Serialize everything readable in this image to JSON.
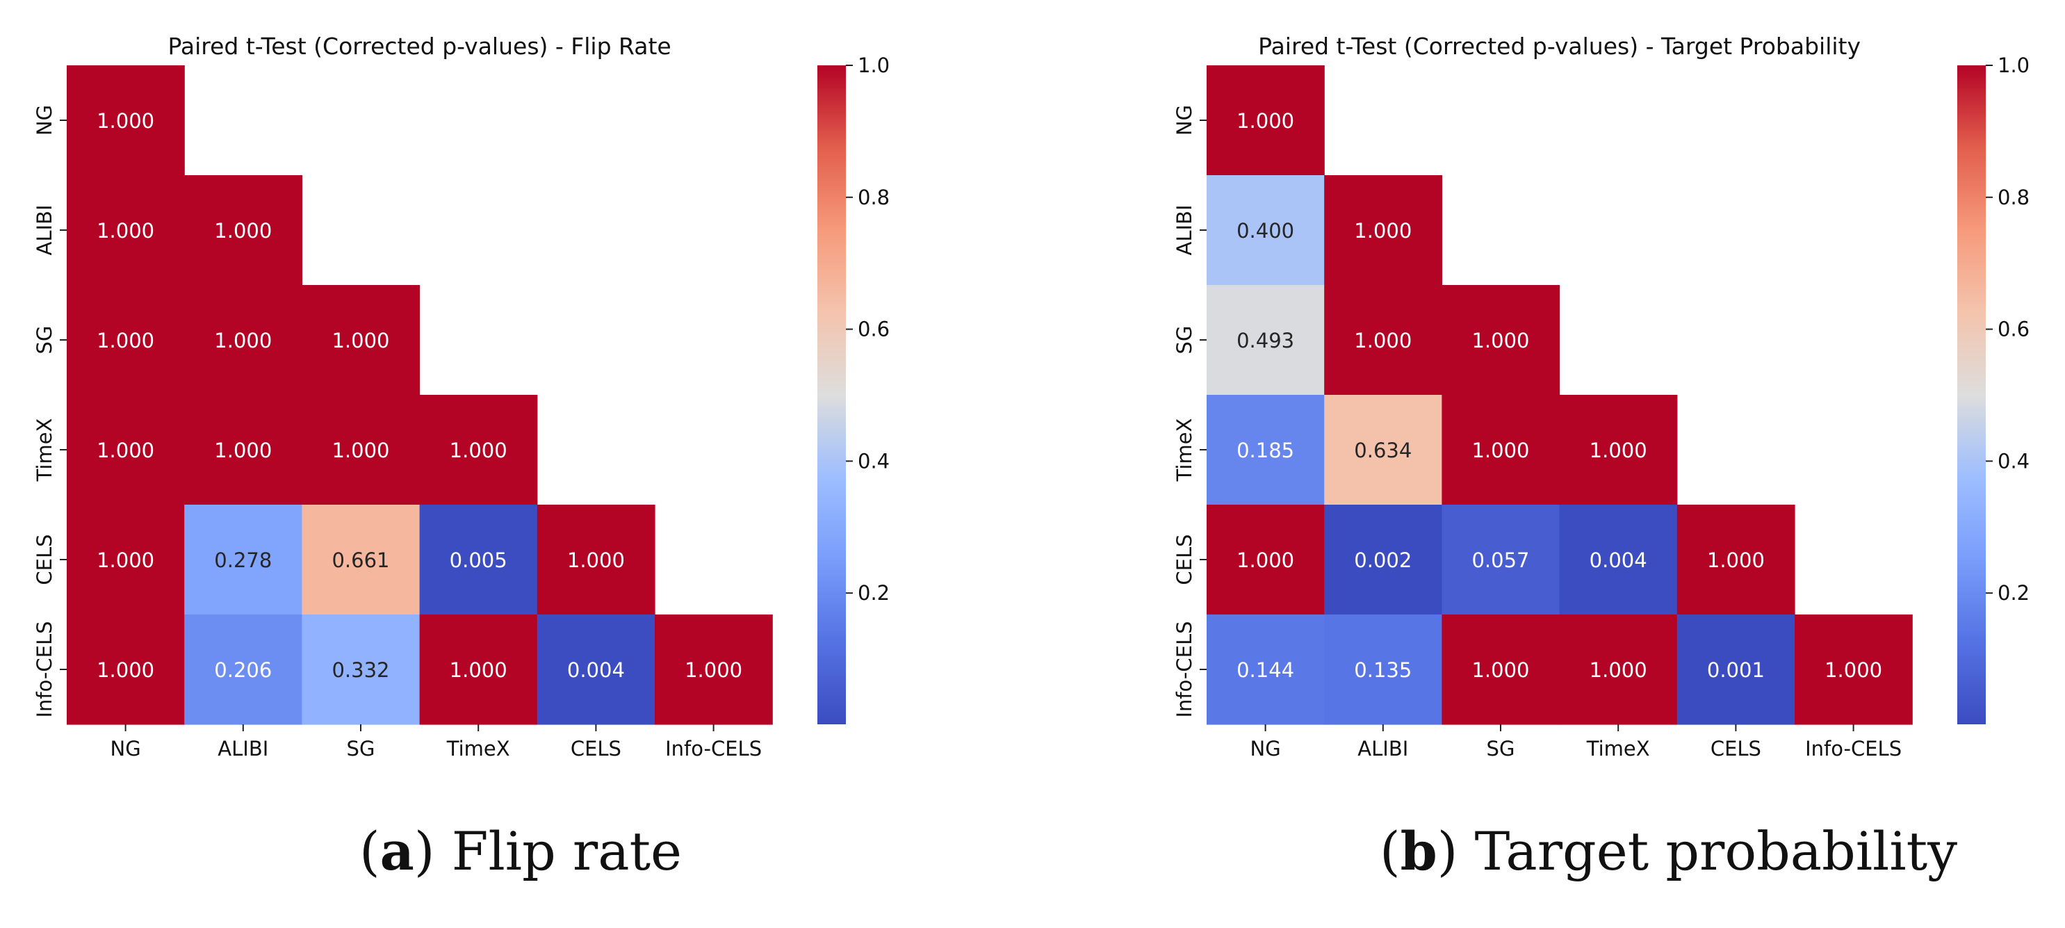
{
  "chart_data": [
    {
      "type": "heatmap",
      "title": "Paired t-Test (Corrected p-values) - Flip Rate",
      "xlabel": "",
      "ylabel": "",
      "labels": [
        "NG",
        "ALIBI",
        "SG",
        "TimeX",
        "CELS",
        "Info-CELS"
      ],
      "matrix": [
        [
          1.0
        ],
        [
          1.0,
          1.0
        ],
        [
          1.0,
          1.0,
          1.0
        ],
        [
          1.0,
          1.0,
          1.0,
          1.0
        ],
        [
          1.0,
          0.278,
          0.661,
          0.005,
          1.0
        ],
        [
          1.0,
          0.206,
          0.332,
          1.0,
          0.004,
          1.0
        ]
      ],
      "colormap": "coolwarm",
      "vmin": 0.001,
      "vmax": 1.0,
      "colorbar_ticks": [
        0.2,
        0.4,
        0.6,
        0.8,
        1.0
      ],
      "colorbar_tick_labels": [
        "0.2",
        "0.4",
        "0.6",
        "0.8",
        "1.0"
      ]
    },
    {
      "type": "heatmap",
      "title": "Paired t-Test (Corrected p-values) - Target Probability",
      "xlabel": "",
      "ylabel": "",
      "labels": [
        "NG",
        "ALIBI",
        "SG",
        "TimeX",
        "CELS",
        "Info-CELS"
      ],
      "matrix": [
        [
          1.0
        ],
        [
          0.4,
          1.0
        ],
        [
          0.493,
          1.0,
          1.0
        ],
        [
          0.185,
          0.634,
          1.0,
          1.0
        ],
        [
          1.0,
          0.002,
          0.057,
          0.004,
          1.0
        ],
        [
          0.144,
          0.135,
          1.0,
          1.0,
          0.001,
          1.0
        ]
      ],
      "colormap": "coolwarm",
      "vmin": 0.001,
      "vmax": 1.0,
      "colorbar_ticks": [
        0.2,
        0.4,
        0.6,
        0.8,
        1.0
      ],
      "colorbar_tick_labels": [
        "0.2",
        "0.4",
        "0.6",
        "0.8",
        "1.0"
      ]
    }
  ],
  "captions": [
    {
      "letter": "a",
      "text": "Flip rate"
    },
    {
      "letter": "b",
      "text": "Target probability"
    }
  ]
}
